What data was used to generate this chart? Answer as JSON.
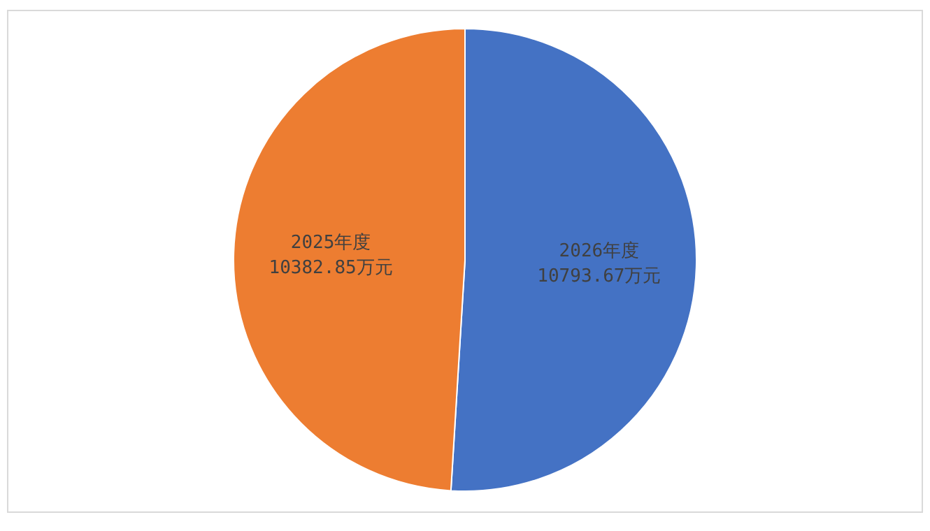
{
  "chart_data": {
    "type": "pie",
    "categories": [
      "2026年度",
      "2025年度"
    ],
    "values": [
      10793.67,
      10382.85
    ],
    "colors": [
      "#4472c4",
      "#ed7d31"
    ],
    "value_labels": [
      "10793.67万元",
      "10382.85万元"
    ],
    "legend": false
  }
}
